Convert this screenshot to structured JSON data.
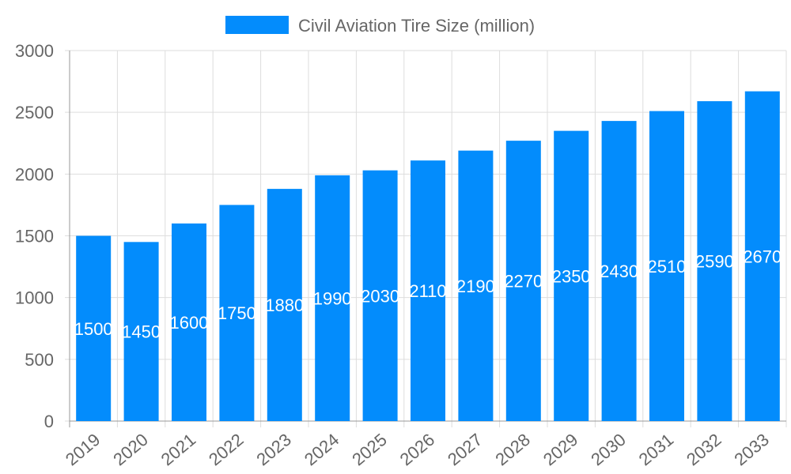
{
  "chart_data": {
    "type": "bar",
    "title": "",
    "xlabel": "",
    "ylabel": "",
    "categories": [
      "2019",
      "2020",
      "2021",
      "2022",
      "2023",
      "2024",
      "2025",
      "2026",
      "2027",
      "2028",
      "2029",
      "2030",
      "2031",
      "2032",
      "2033"
    ],
    "series": [
      {
        "name": "Civil Aviation Tire Size (million)",
        "values": [
          1500,
          1450,
          1600,
          1750,
          1880,
          1990,
          2030,
          2110,
          2190,
          2270,
          2350,
          2430,
          2510,
          2590,
          2670
        ],
        "color": "#038cfc"
      }
    ],
    "ylim": [
      0,
      3000
    ],
    "yticks": [
      "0",
      "500",
      "1000",
      "1500",
      "2000",
      "2500",
      "3000"
    ],
    "grid": true,
    "legend": "top-center",
    "data_labels": true
  }
}
